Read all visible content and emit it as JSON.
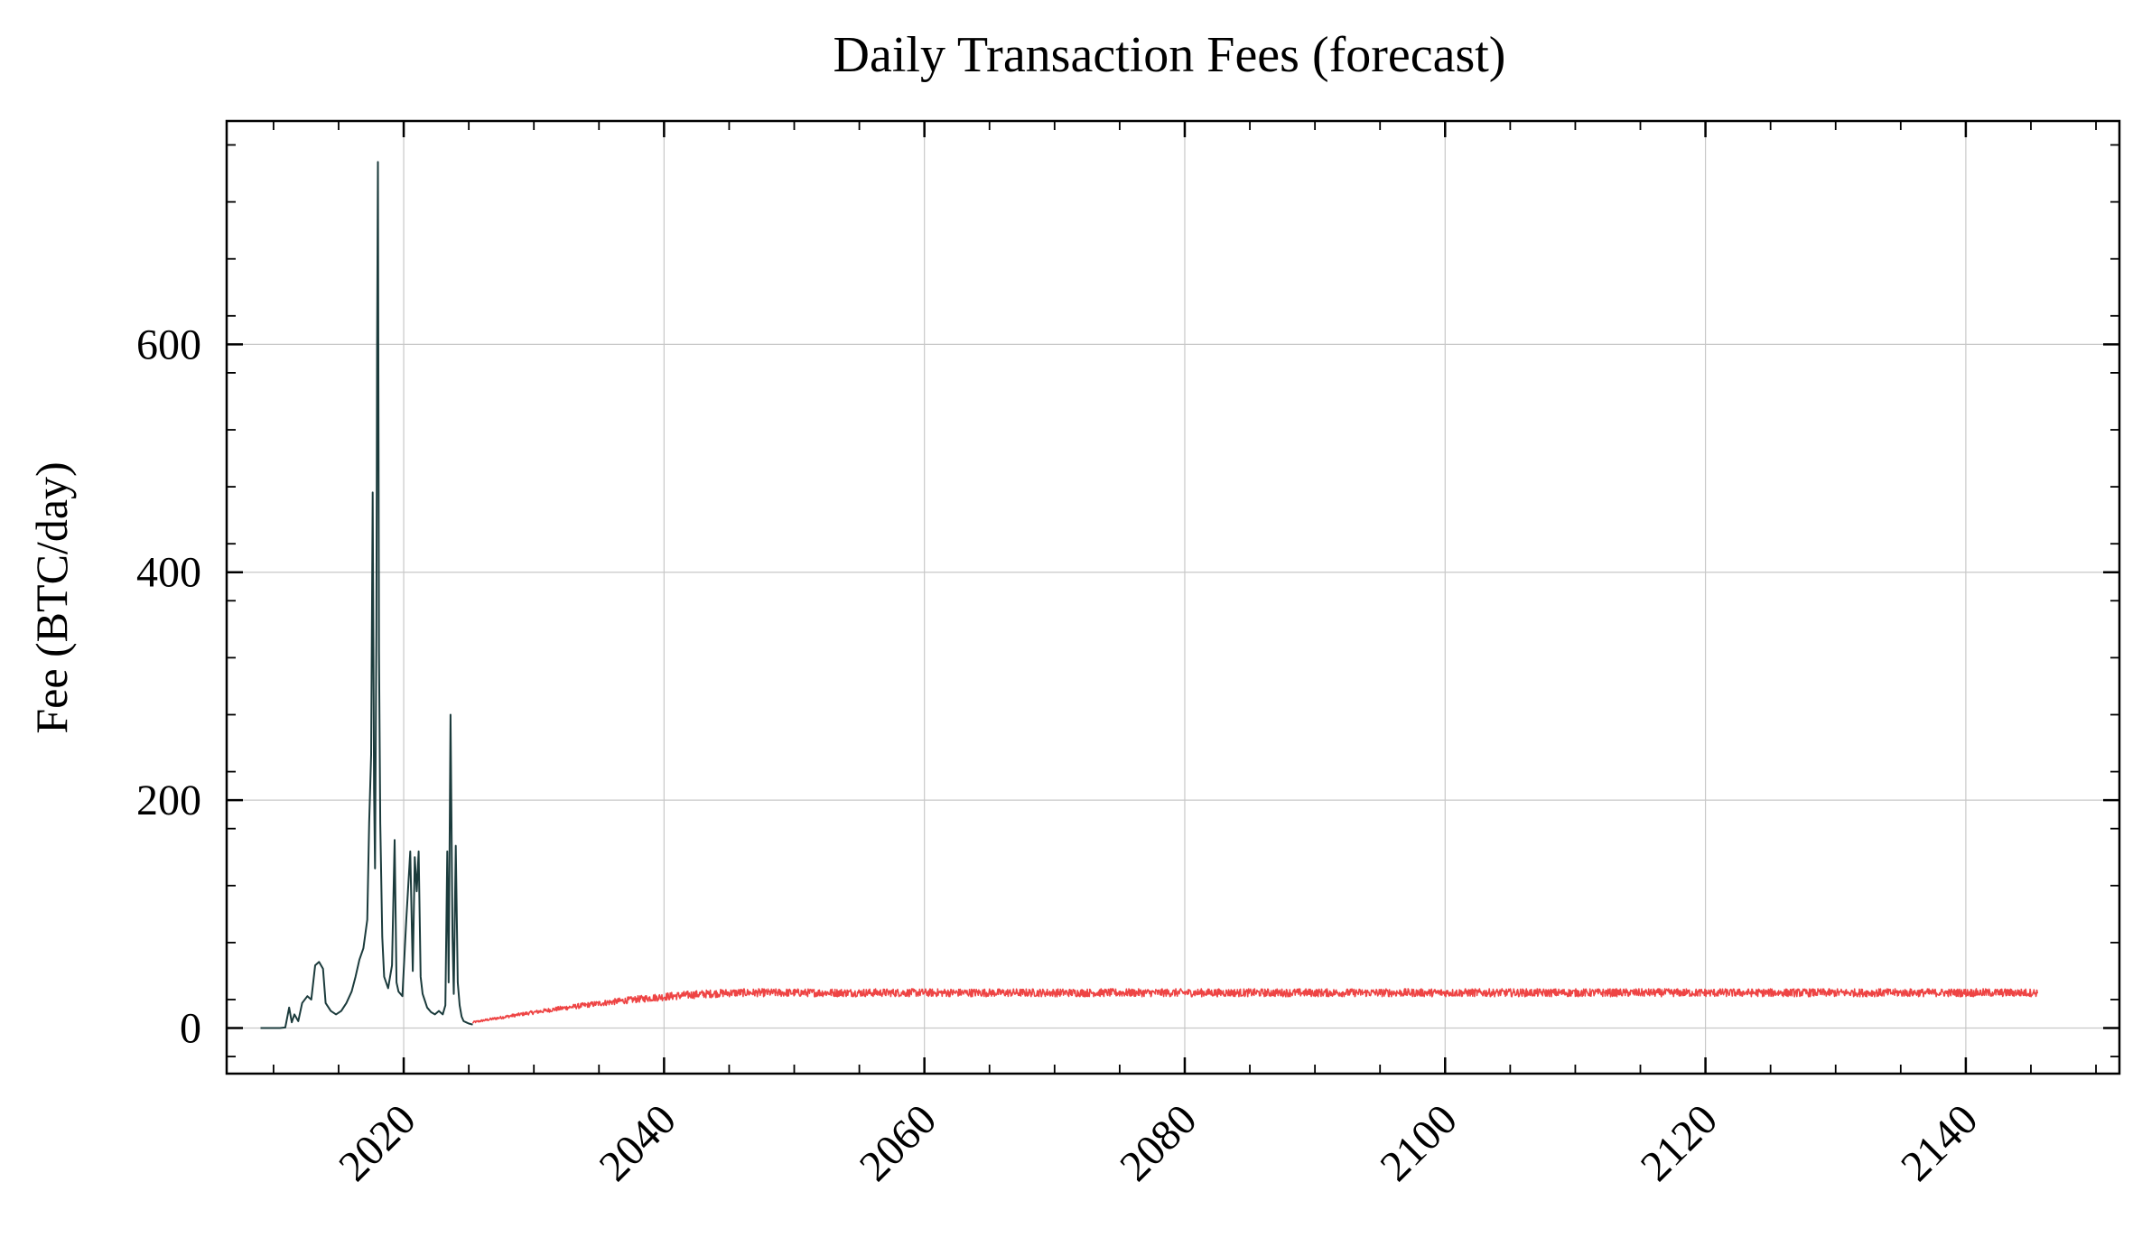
{
  "chart_data": {
    "type": "line",
    "title": "Daily Transaction Fees (forecast)",
    "xlabel": "",
    "ylabel": "Fee (BTC/day)",
    "x_is_year": true,
    "xlim": [
      2006.4,
      2151.8
    ],
    "ylim": [
      -40,
      796
    ],
    "xticks": [
      2020,
      2040,
      2060,
      2080,
      2100,
      2120,
      2140
    ],
    "xtick_labels": [
      "2020",
      "2040",
      "2060",
      "2080",
      "2100",
      "2120",
      "2140"
    ],
    "yticks": [
      0,
      200,
      400,
      600
    ],
    "ytick_labels": [
      "0",
      "200",
      "400",
      "600"
    ],
    "grid": true,
    "legend": "none",
    "series": [
      {
        "color": "#1b3b3c",
        "style": "historical",
        "x": [
          2009.0,
          2010.5,
          2010.9,
          2011.2,
          2011.4,
          2011.6,
          2011.9,
          2012.2,
          2012.6,
          2012.9,
          2013.2,
          2013.5,
          2013.8,
          2014.0,
          2014.4,
          2014.8,
          2015.2,
          2015.6,
          2016.0,
          2016.3,
          2016.6,
          2016.9,
          2017.2,
          2017.35,
          2017.5,
          2017.62,
          2017.72,
          2017.8,
          2017.9,
          2017.96,
          2018.02,
          2018.1,
          2018.2,
          2018.35,
          2018.5,
          2018.8,
          2019.1,
          2019.3,
          2019.45,
          2019.6,
          2019.9,
          2020.2,
          2020.5,
          2020.7,
          2020.85,
          2021.0,
          2021.15,
          2021.3,
          2021.45,
          2021.6,
          2021.8,
          2022.1,
          2022.4,
          2022.7,
          2023.0,
          2023.2,
          2023.35,
          2023.45,
          2023.6,
          2023.75,
          2023.85,
          2024.0,
          2024.15,
          2024.3,
          2024.45,
          2024.6,
          2024.8,
          2025.0,
          2025.3
        ],
        "y": [
          0,
          0,
          0.5,
          18,
          5,
          12,
          6,
          22,
          28,
          25,
          55,
          58,
          52,
          22,
          15,
          12,
          15,
          22,
          32,
          45,
          60,
          70,
          95,
          180,
          240,
          470,
          210,
          140,
          350,
          600,
          760,
          330,
          180,
          80,
          45,
          35,
          55,
          165,
          40,
          32,
          28,
          95,
          155,
          50,
          150,
          120,
          155,
          45,
          30,
          25,
          18,
          14,
          12,
          15,
          12,
          20,
          155,
          40,
          275,
          80,
          30,
          160,
          40,
          20,
          10,
          6,
          5,
          4,
          3
        ]
      },
      {
        "color": "#ee4444",
        "style": "forecast",
        "start_year": 2025.3,
        "end_year": 2145.5,
        "start_value": 5,
        "plateau_value": 31,
        "plateau_reached_year": 2046,
        "noise_amplitude": 3.5
      }
    ]
  }
}
